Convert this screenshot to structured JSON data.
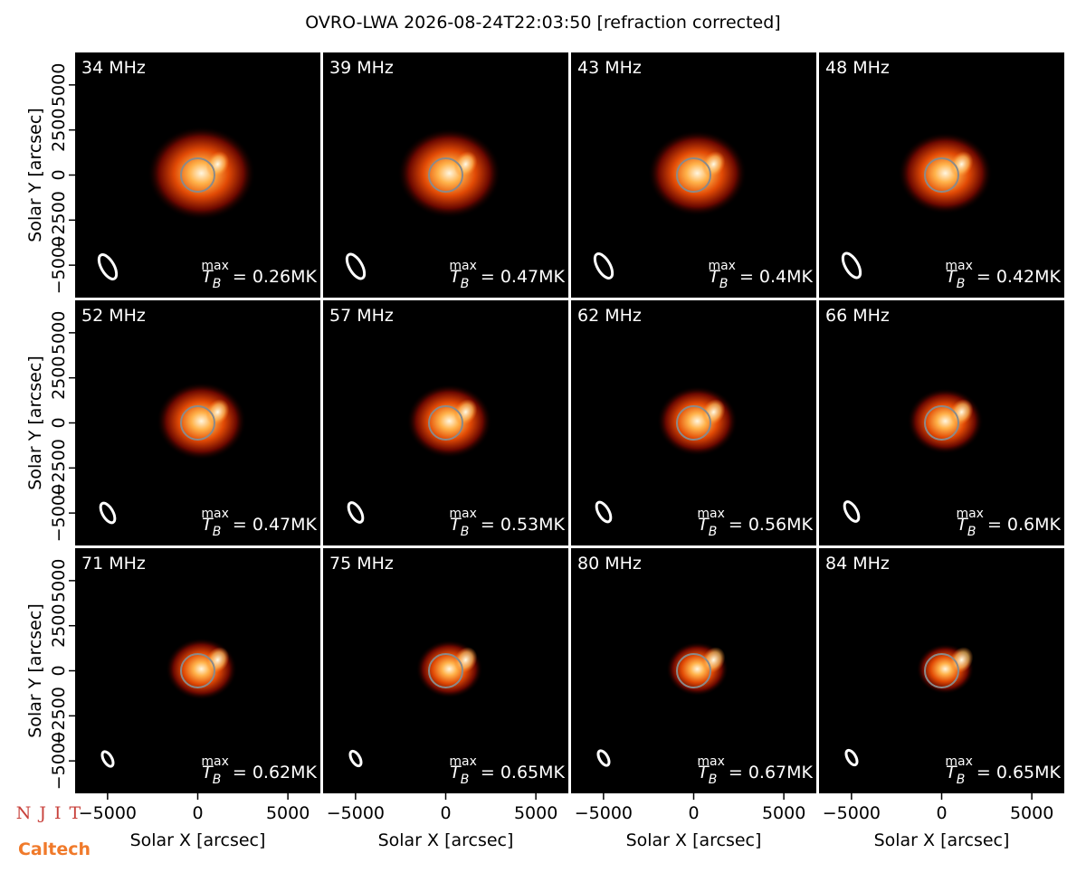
{
  "title": "OVRO-LWA 2026-08-24T22:03:50 [refraction corrected]",
  "tb_symbol": "T",
  "tb_sub": "B",
  "tb_sup": "max",
  "panels": [
    {
      "label": "34 MHz",
      "tb_max": "= 0.26MK"
    },
    {
      "label": "39 MHz",
      "tb_max": "= 0.47MK"
    },
    {
      "label": "43 MHz",
      "tb_max": "= 0.4MK"
    },
    {
      "label": "48 MHz",
      "tb_max": "= 0.42MK"
    },
    {
      "label": "52 MHz",
      "tb_max": "= 0.47MK"
    },
    {
      "label": "57 MHz",
      "tb_max": "= 0.53MK"
    },
    {
      "label": "62 MHz",
      "tb_max": "= 0.56MK"
    },
    {
      "label": "66 MHz",
      "tb_max": "= 0.6MK"
    },
    {
      "label": "71 MHz",
      "tb_max": "= 0.62MK"
    },
    {
      "label": "75 MHz",
      "tb_max": "= 0.65MK"
    },
    {
      "label": "80 MHz",
      "tb_max": "= 0.67MK"
    },
    {
      "label": "84 MHz",
      "tb_max": "= 0.65MK"
    }
  ],
  "x_axis": {
    "label": "Solar X [arcsec]",
    "lim": [
      -6800,
      6800
    ],
    "ticks": [
      {
        "value": -5000,
        "label": "−5000"
      },
      0,
      5000
    ]
  },
  "y_axis": {
    "label": "Solar Y [arcsec]",
    "lim": [
      -6800,
      6800
    ],
    "ticks": [
      {
        "value": -5000,
        "label": "−5000"
      },
      {
        "value": -2500,
        "label": "−2500"
      },
      0,
      2500,
      5000
    ]
  },
  "logos": {
    "top": "NJIT",
    "bottom": "Caltech"
  }
}
